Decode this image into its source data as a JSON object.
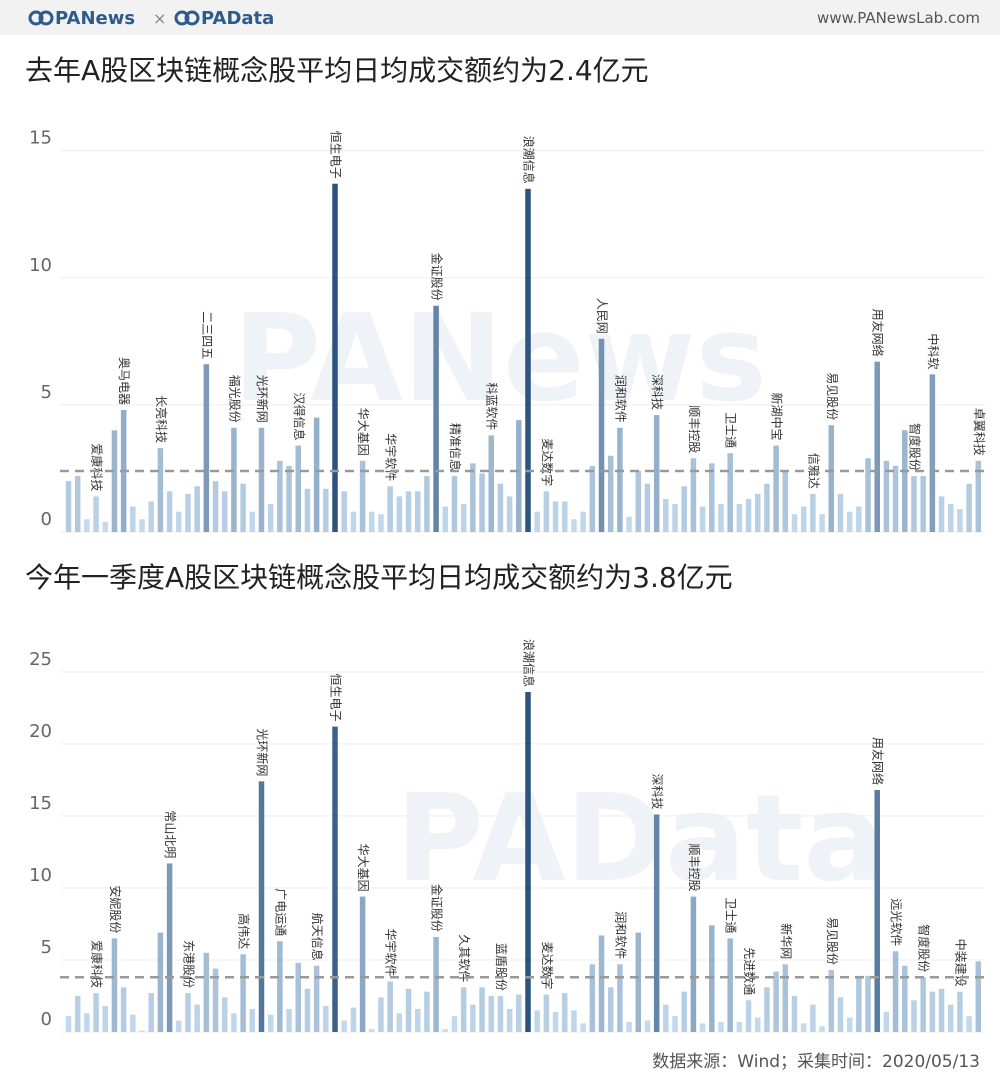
{
  "header": {
    "logo_left": "PANews",
    "separator": "×",
    "logo_right": "PAData",
    "url": "www.PANewsLab.com"
  },
  "chart_data": [
    {
      "type": "bar",
      "title": "去年A股区块链概念股平均日均成交额约为2.4亿元",
      "watermark": "PANews",
      "categories": [
        null,
        null,
        null,
        "爱康科技",
        null,
        null,
        "奥马电器",
        null,
        null,
        null,
        "长亮科技",
        null,
        null,
        null,
        null,
        "二三四五",
        null,
        null,
        "福光股份",
        null,
        null,
        "光环新网",
        null,
        null,
        null,
        "汉得信息",
        null,
        null,
        null,
        "恒生电子",
        null,
        null,
        "华大基因",
        null,
        null,
        "华宇软件",
        null,
        null,
        null,
        null,
        "金证股份",
        null,
        "精准信息",
        null,
        null,
        null,
        "科蓝软件",
        null,
        null,
        null,
        "浪潮信息",
        null,
        "麦达数字",
        null,
        null,
        null,
        null,
        null,
        "人民网",
        null,
        "润和软件",
        null,
        null,
        null,
        "深科技",
        null,
        null,
        null,
        "顺丰控股",
        null,
        null,
        null,
        "卫士通",
        null,
        null,
        null,
        null,
        "新湖中宝",
        null,
        null,
        null,
        "信雅达",
        null,
        "易见股份",
        null,
        null,
        null,
        null,
        "用友网络",
        null,
        null,
        null,
        "智度股份",
        null,
        "中科软",
        null,
        null,
        null,
        null,
        "卓翼科技"
      ],
      "values": [
        2.0,
        2.2,
        0.5,
        1.4,
        0.4,
        4.0,
        4.8,
        1.0,
        0.5,
        1.2,
        3.3,
        1.6,
        0.8,
        1.5,
        1.8,
        6.6,
        2.0,
        1.6,
        4.1,
        1.9,
        0.8,
        4.1,
        1.1,
        2.8,
        2.6,
        3.4,
        1.7,
        4.5,
        1.7,
        13.7,
        1.6,
        0.8,
        2.8,
        0.8,
        0.7,
        1.8,
        1.4,
        1.6,
        1.6,
        2.2,
        8.9,
        1.0,
        2.2,
        1.1,
        2.7,
        2.3,
        3.8,
        1.9,
        1.4,
        4.4,
        13.5,
        0.8,
        1.6,
        1.2,
        1.2,
        0.5,
        0.8,
        2.6,
        7.6,
        3.0,
        4.1,
        0.6,
        2.4,
        1.9,
        4.6,
        1.3,
        1.1,
        1.8,
        2.9,
        1.0,
        2.7,
        1.1,
        3.1,
        1.1,
        1.3,
        1.5,
        1.9,
        3.4,
        2.4,
        0.7,
        1.0,
        1.5,
        0.7,
        4.2,
        1.5,
        0.8,
        1.0,
        2.9,
        6.7,
        2.8,
        2.6,
        4.0,
        2.2,
        2.2,
        6.2,
        1.4,
        1.1,
        0.9,
        1.9,
        2.8
      ],
      "reference_line": 2.4,
      "ylim": [
        0,
        16.6
      ],
      "yticks": [
        0,
        5,
        10,
        15
      ],
      "grid": true,
      "color_scale": [
        "#c9def1",
        "#264f7a"
      ]
    },
    {
      "type": "bar",
      "title": "今年一季度A股区块链概念股平均日均成交额约为3.8亿元",
      "watermark": "PAData",
      "categories": [
        null,
        null,
        null,
        "爱康科技",
        null,
        "安妮股份",
        null,
        null,
        null,
        null,
        null,
        "常山北明",
        null,
        "东港股份",
        null,
        null,
        null,
        null,
        null,
        "高伟达",
        null,
        "光环新网",
        null,
        "广电运通",
        null,
        null,
        null,
        "航天信息",
        null,
        "恒生电子",
        null,
        null,
        "华大基因",
        null,
        null,
        "华宇软件",
        null,
        null,
        null,
        null,
        "金证股份",
        null,
        null,
        "久其软件",
        null,
        null,
        null,
        "蓝盾股份",
        null,
        null,
        "浪潮信息",
        null,
        "麦达数字",
        null,
        null,
        null,
        null,
        null,
        null,
        null,
        "润和软件",
        null,
        null,
        null,
        "深科技",
        null,
        null,
        null,
        "顺丰控股",
        null,
        null,
        null,
        "卫士通",
        null,
        "先进数通",
        null,
        null,
        null,
        "新华网",
        null,
        null,
        null,
        null,
        "易见股份",
        null,
        null,
        null,
        null,
        "用友网络",
        null,
        "远光软件",
        null,
        null,
        "智度股份",
        null,
        null,
        null,
        "中装建设",
        null,
        null
      ],
      "values": [
        1.1,
        2.5,
        1.3,
        2.7,
        1.8,
        6.5,
        3.1,
        1.2,
        0.1,
        2.7,
        6.9,
        11.7,
        0.8,
        2.7,
        1.9,
        5.5,
        4.4,
        2.4,
        1.3,
        5.4,
        1.6,
        17.4,
        1.2,
        6.3,
        1.6,
        4.8,
        3.0,
        4.6,
        1.8,
        21.2,
        0.8,
        1.7,
        9.4,
        0.2,
        2.4,
        3.5,
        1.3,
        3.0,
        1.6,
        2.8,
        6.6,
        0.2,
        1.1,
        3.1,
        1.9,
        3.1,
        2.5,
        2.5,
        1.6,
        2.6,
        23.6,
        1.5,
        2.6,
        1.4,
        2.7,
        1.5,
        0.6,
        4.7,
        6.7,
        3.1,
        4.7,
        0.7,
        6.9,
        0.8,
        15.1,
        1.9,
        1.1,
        2.8,
        9.4,
        0.6,
        7.4,
        0.7,
        6.5,
        0.7,
        2.2,
        1.0,
        3.1,
        4.2,
        4.7,
        2.5,
        0.6,
        1.9,
        0.4,
        4.3,
        2.4,
        1.0,
        3.9,
        3.9,
        16.8,
        1.4,
        5.6,
        4.6,
        2.2,
        3.8,
        2.8,
        3.0,
        1.9,
        2.8,
        1.1,
        4.9
      ],
      "reference_line": 3.8,
      "ylim": [
        0,
        28.6
      ],
      "yticks": [
        0,
        5,
        10,
        15,
        20,
        25
      ],
      "grid": true,
      "color_scale": [
        "#c9def1",
        "#264f7a"
      ]
    }
  ],
  "footer": {
    "source": "数据来源：Wind；采集时间：2020/05/13"
  }
}
